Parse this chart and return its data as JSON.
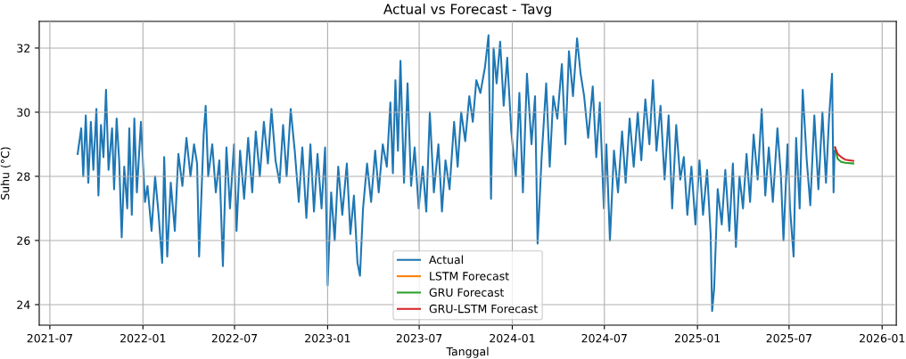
{
  "chart_data": {
    "type": "line",
    "title": "Actual vs Forecast - Tavg",
    "xlabel": "Tanggal",
    "ylabel": "Suhu (°C)",
    "xlim": [
      "2021-06-10",
      "2026-01-29"
    ],
    "ylim": [
      23.36,
      32.83
    ],
    "yticks": [
      24,
      26,
      28,
      30,
      32
    ],
    "xticks": [
      {
        "value": "2021-07-01",
        "label": "2021-07"
      },
      {
        "value": "2022-01-01",
        "label": "2022-01"
      },
      {
        "value": "2022-07-01",
        "label": "2022-07"
      },
      {
        "value": "2023-01-01",
        "label": "2023-01"
      },
      {
        "value": "2023-07-01",
        "label": "2023-07"
      },
      {
        "value": "2024-01-01",
        "label": "2024-01"
      },
      {
        "value": "2024-07-01",
        "label": "2024-07"
      },
      {
        "value": "2025-01-01",
        "label": "2025-01"
      },
      {
        "value": "2025-07-01",
        "label": "2025-07"
      },
      {
        "value": "2026-01-01",
        "label": "2026-01"
      }
    ],
    "grid": true,
    "legend": "bottom",
    "marker": "none",
    "line_style": "solid",
    "series": [
      {
        "name": "Actual",
        "color": "#1f77b4",
        "x": [
          "2021-08-25",
          "2021-09-01",
          "2021-09-05",
          "2021-09-10",
          "2021-09-15",
          "2021-09-20",
          "2021-09-25",
          "2021-10-01",
          "2021-10-05",
          "2021-10-10",
          "2021-10-15",
          "2021-10-20",
          "2021-10-25",
          "2021-11-01",
          "2021-11-05",
          "2021-11-10",
          "2021-11-15",
          "2021-11-20",
          "2021-11-25",
          "2021-12-01",
          "2021-12-05",
          "2021-12-10",
          "2021-12-15",
          "2021-12-20",
          "2021-12-28",
          "2022-01-05",
          "2022-01-10",
          "2022-01-18",
          "2022-01-25",
          "2022-02-01",
          "2022-02-08",
          "2022-02-12",
          "2022-02-18",
          "2022-02-25",
          "2022-03-05",
          "2022-03-12",
          "2022-03-20",
          "2022-03-28",
          "2022-04-05",
          "2022-04-12",
          "2022-04-18",
          "2022-04-22",
          "2022-05-01",
          "2022-05-05",
          "2022-05-10",
          "2022-05-18",
          "2022-05-25",
          "2022-06-01",
          "2022-06-08",
          "2022-06-15",
          "2022-06-22",
          "2022-06-30",
          "2022-07-05",
          "2022-07-12",
          "2022-07-20",
          "2022-07-28",
          "2022-08-05",
          "2022-08-12",
          "2022-08-20",
          "2022-08-28",
          "2022-09-05",
          "2022-09-12",
          "2022-09-20",
          "2022-09-28",
          "2022-10-05",
          "2022-10-12",
          "2022-10-20",
          "2022-10-28",
          "2022-11-05",
          "2022-11-12",
          "2022-11-20",
          "2022-11-28",
          "2022-12-05",
          "2022-12-12",
          "2022-12-20",
          "2022-12-27",
          "2023-01-01",
          "2023-01-08",
          "2023-01-15",
          "2023-01-22",
          "2023-01-30",
          "2023-02-08",
          "2023-02-15",
          "2023-02-22",
          "2023-03-01",
          "2023-03-06",
          "2023-03-12",
          "2023-03-20",
          "2023-03-28",
          "2023-04-05",
          "2023-04-12",
          "2023-04-20",
          "2023-04-28",
          "2023-05-05",
          "2023-05-10",
          "2023-05-15",
          "2023-05-20",
          "2023-05-25",
          "2023-06-01",
          "2023-06-08",
          "2023-06-15",
          "2023-06-22",
          "2023-06-30",
          "2023-07-08",
          "2023-07-15",
          "2023-07-22",
          "2023-07-30",
          "2023-08-08",
          "2023-08-15",
          "2023-08-22",
          "2023-08-30",
          "2023-09-08",
          "2023-09-15",
          "2023-09-22",
          "2023-09-30",
          "2023-10-08",
          "2023-10-15",
          "2023-10-22",
          "2023-10-30",
          "2023-11-08",
          "2023-11-15",
          "2023-11-20",
          "2023-11-25",
          "2023-12-01",
          "2023-12-08",
          "2023-12-15",
          "2023-12-22",
          "2023-12-30",
          "2024-01-08",
          "2024-01-15",
          "2024-01-22",
          "2024-01-30",
          "2024-02-08",
          "2024-02-15",
          "2024-02-20",
          "2024-02-28",
          "2024-03-08",
          "2024-03-15",
          "2024-03-22",
          "2024-03-30",
          "2024-04-08",
          "2024-04-15",
          "2024-04-22",
          "2024-04-30",
          "2024-05-08",
          "2024-05-15",
          "2024-05-22",
          "2024-05-30",
          "2024-06-08",
          "2024-06-15",
          "2024-06-22",
          "2024-06-30",
          "2024-07-05",
          "2024-07-12",
          "2024-07-20",
          "2024-07-28",
          "2024-08-05",
          "2024-08-12",
          "2024-08-20",
          "2024-08-28",
          "2024-09-05",
          "2024-09-12",
          "2024-09-20",
          "2024-09-28",
          "2024-10-05",
          "2024-10-12",
          "2024-10-20",
          "2024-10-28",
          "2024-11-05",
          "2024-11-12",
          "2024-11-20",
          "2024-11-28",
          "2024-12-05",
          "2024-12-12",
          "2024-12-20",
          "2024-12-28",
          "2025-01-05",
          "2025-01-12",
          "2025-01-20",
          "2025-01-27",
          "2025-01-30",
          "2025-02-03",
          "2025-02-10",
          "2025-02-18",
          "2025-02-25",
          "2025-03-05",
          "2025-03-12",
          "2025-03-18",
          "2025-03-25",
          "2025-04-01",
          "2025-04-08",
          "2025-04-15",
          "2025-04-22",
          "2025-04-30",
          "2025-05-08",
          "2025-05-15",
          "2025-05-22",
          "2025-05-30",
          "2025-06-08",
          "2025-06-15",
          "2025-06-20",
          "2025-06-28",
          "2025-07-03",
          "2025-07-10",
          "2025-07-15",
          "2025-07-22",
          "2025-07-28",
          "2025-08-05",
          "2025-08-12",
          "2025-08-20",
          "2025-08-28",
          "2025-09-05",
          "2025-09-12",
          "2025-09-18",
          "2025-09-24",
          "2025-09-27",
          "2025-09-29"
        ],
        "values": [
          28.7,
          29.5,
          28.0,
          29.9,
          27.8,
          29.7,
          28.2,
          30.1,
          27.4,
          29.6,
          28.6,
          30.7,
          28.2,
          29.5,
          27.6,
          29.8,
          28.5,
          26.1,
          28.3,
          27.0,
          29.5,
          26.8,
          29.8,
          27.5,
          29.7,
          27.2,
          27.7,
          26.3,
          28.0,
          26.8,
          25.3,
          28.6,
          25.5,
          27.8,
          26.3,
          28.7,
          27.7,
          29.2,
          28.0,
          29.0,
          28.4,
          25.5,
          29.3,
          30.2,
          28.0,
          29.0,
          27.5,
          28.5,
          25.2,
          28.9,
          27.0,
          29.0,
          26.3,
          28.8,
          27.3,
          29.2,
          27.5,
          29.4,
          28.0,
          29.7,
          28.4,
          30.1,
          28.5,
          27.8,
          29.6,
          28.0,
          30.1,
          28.8,
          27.2,
          28.9,
          26.7,
          29.0,
          26.9,
          28.7,
          27.0,
          28.9,
          24.6,
          27.5,
          26.0,
          28.3,
          26.8,
          28.4,
          26.2,
          27.4,
          25.3,
          24.9,
          27.0,
          28.4,
          27.2,
          28.8,
          27.5,
          29.0,
          28.3,
          30.3,
          28.1,
          31.0,
          28.8,
          31.6,
          27.8,
          30.9,
          27.7,
          28.9,
          27.0,
          28.3,
          26.9,
          30.0,
          27.5,
          29.0,
          26.9,
          28.5,
          27.6,
          29.7,
          28.3,
          30.0,
          29.1,
          30.5,
          29.7,
          31.0,
          30.6,
          31.4,
          32.4,
          27.3,
          32.0,
          30.9,
          32.2,
          30.2,
          31.7,
          29.4,
          28.0,
          30.6,
          27.5,
          31.2,
          29.0,
          30.5,
          25.9,
          28.6,
          30.9,
          28.3,
          30.5,
          29.8,
          31.5,
          29.0,
          31.9,
          30.5,
          32.3,
          31.2,
          30.5,
          29.2,
          30.8,
          28.6,
          30.3,
          27.0,
          29.0,
          26.0,
          28.8,
          27.5,
          29.4,
          27.8,
          29.8,
          28.3,
          30.0,
          28.5,
          30.4,
          29.0,
          31.0,
          28.8,
          30.2,
          27.9,
          29.9,
          27.0,
          29.6,
          27.9,
          28.6,
          26.8,
          28.3,
          26.5,
          28.5,
          26.8,
          28.2,
          26.2,
          23.8,
          24.5,
          27.6,
          26.5,
          28.2,
          26.3,
          28.4,
          25.8,
          28.0,
          27.0,
          28.7,
          27.2,
          29.3,
          27.9,
          30.1,
          27.4,
          28.9,
          27.2,
          29.5,
          28.0,
          26.0,
          29.0,
          27.0,
          25.5,
          29.2,
          27.0,
          30.7,
          28.5,
          27.1,
          29.9,
          27.6,
          30.0,
          27.8,
          29.8,
          31.2,
          27.5,
          28.8
        ]
      },
      {
        "name": "LSTM Forecast",
        "color": "#ff7f0e"
      },
      {
        "name": "GRU Forecast",
        "color": "#2ca02c",
        "x": [
          "2025-09-30",
          "2025-10-05",
          "2025-10-12",
          "2025-10-20",
          "2025-11-05"
        ],
        "values": [
          28.9,
          28.55,
          28.45,
          28.42,
          28.4
        ]
      },
      {
        "name": "GRU-LSTM Forecast",
        "color": "#d62728",
        "x": [
          "2025-09-30",
          "2025-10-05",
          "2025-10-12",
          "2025-10-20",
          "2025-11-05"
        ],
        "values": [
          28.9,
          28.7,
          28.6,
          28.52,
          28.48
        ]
      }
    ]
  }
}
